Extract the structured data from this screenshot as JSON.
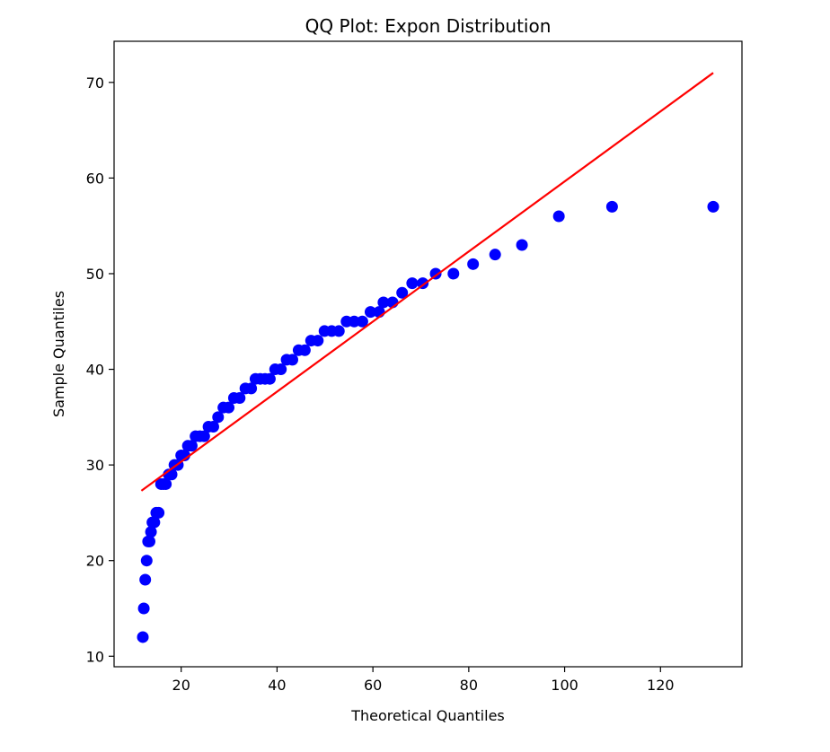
{
  "chart_data": {
    "type": "scatter",
    "title": "QQ Plot: Expon Distribution",
    "xlabel": "Theoretical Quantiles",
    "ylabel": "Sample Quantiles",
    "xlim": [
      6.0,
      137.0
    ],
    "ylim": [
      8.9,
      74.3
    ],
    "x_ticks": [
      20,
      40,
      60,
      80,
      100,
      120
    ],
    "y_ticks": [
      10,
      20,
      30,
      40,
      50,
      60,
      70
    ],
    "grid": false,
    "legend": "none",
    "colors": {
      "points": "#0000ff",
      "line": "#ff0000"
    },
    "series": [
      {
        "type": "scatter",
        "points": [
          [
            12.0,
            12
          ],
          [
            12.2,
            15
          ],
          [
            12.5,
            18
          ],
          [
            12.8,
            20
          ],
          [
            13.1,
            22
          ],
          [
            13.4,
            22
          ],
          [
            13.7,
            23
          ],
          [
            14.0,
            24
          ],
          [
            14.4,
            24
          ],
          [
            14.8,
            25
          ],
          [
            15.3,
            25
          ],
          [
            15.8,
            28
          ],
          [
            16.3,
            28
          ],
          [
            16.8,
            28
          ],
          [
            17.4,
            29
          ],
          [
            18.0,
            29
          ],
          [
            18.6,
            30
          ],
          [
            19.3,
            30
          ],
          [
            20.0,
            31
          ],
          [
            20.7,
            31
          ],
          [
            21.4,
            32
          ],
          [
            22.2,
            32
          ],
          [
            23.0,
            33
          ],
          [
            23.9,
            33
          ],
          [
            24.8,
            33
          ],
          [
            25.7,
            34
          ],
          [
            26.7,
            34
          ],
          [
            27.7,
            35
          ],
          [
            28.8,
            36
          ],
          [
            29.9,
            36
          ],
          [
            31.0,
            37
          ],
          [
            32.2,
            37
          ],
          [
            33.4,
            38
          ],
          [
            34.6,
            38
          ],
          [
            35.5,
            39
          ],
          [
            36.5,
            39
          ],
          [
            37.5,
            39
          ],
          [
            38.5,
            39
          ],
          [
            39.6,
            40
          ],
          [
            40.8,
            40
          ],
          [
            42.0,
            41
          ],
          [
            43.2,
            41
          ],
          [
            44.5,
            42
          ],
          [
            45.8,
            42
          ],
          [
            47.1,
            43
          ],
          [
            48.5,
            43
          ],
          [
            49.9,
            44
          ],
          [
            51.4,
            44
          ],
          [
            52.9,
            44
          ],
          [
            54.5,
            45
          ],
          [
            56.1,
            45
          ],
          [
            57.8,
            45
          ],
          [
            59.5,
            46
          ],
          [
            61.3,
            46
          ],
          [
            62.2,
            47
          ],
          [
            64.1,
            47
          ],
          [
            66.1,
            48
          ],
          [
            68.2,
            49
          ],
          [
            70.4,
            49
          ],
          [
            73.1,
            50
          ],
          [
            76.8,
            50
          ],
          [
            80.9,
            51
          ],
          [
            85.5,
            52
          ],
          [
            91.1,
            53
          ],
          [
            98.8,
            56
          ],
          [
            109.9,
            57
          ],
          [
            131.0,
            57
          ]
        ]
      },
      {
        "type": "line",
        "points": [
          [
            11.7,
            27.3
          ],
          [
            131.0,
            71.0
          ]
        ]
      }
    ]
  }
}
